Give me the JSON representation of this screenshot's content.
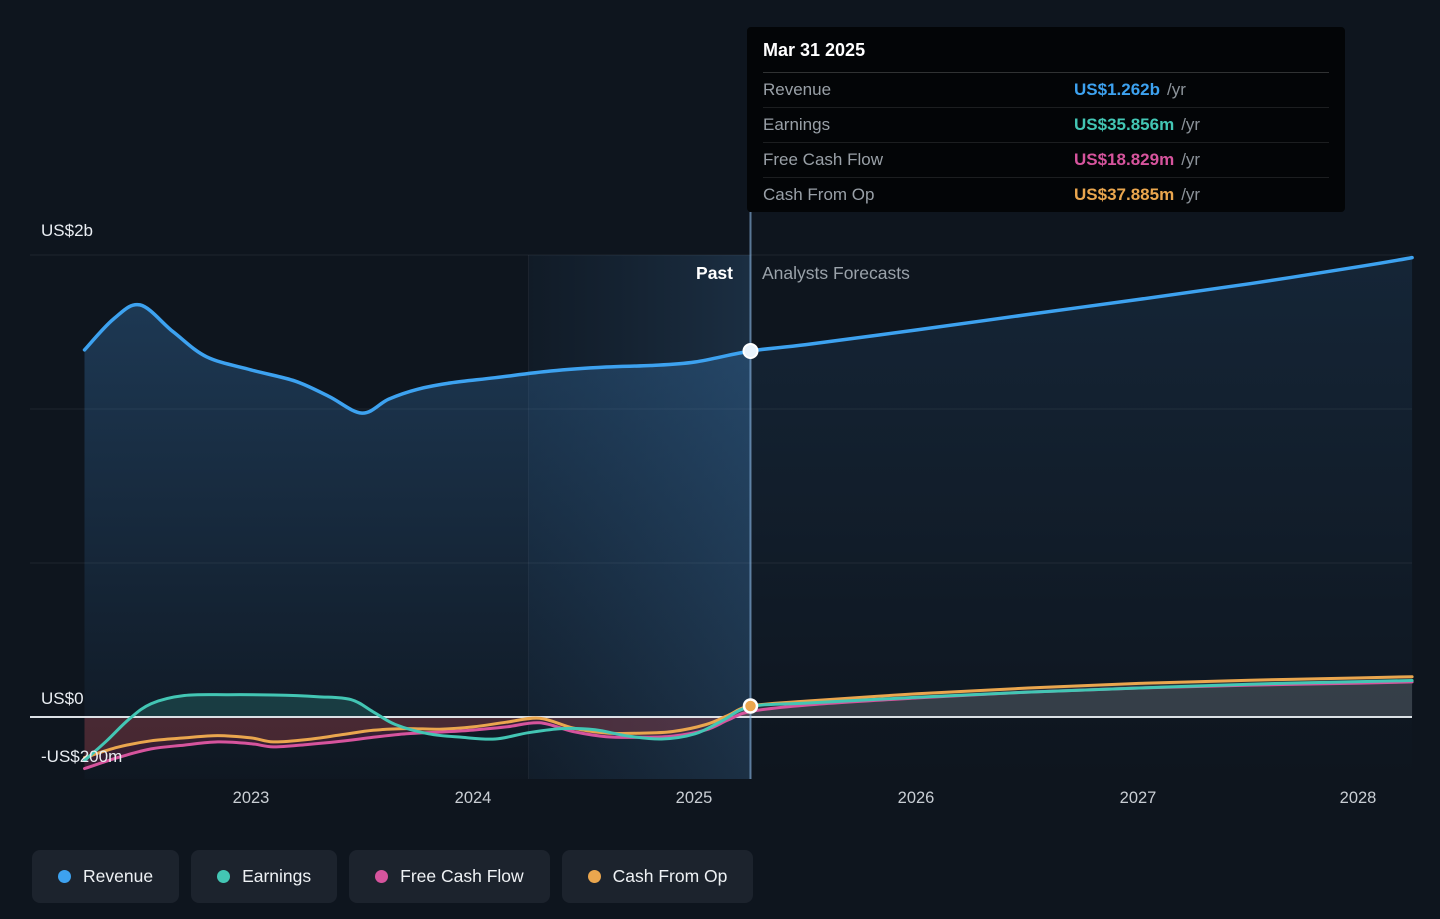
{
  "tooltip": {
    "title": "Mar 31 2025",
    "rows": [
      {
        "label": "Revenue",
        "value": "US$1.262b",
        "suffix": "/yr",
        "color": "#3da2f0"
      },
      {
        "label": "Earnings",
        "value": "US$35.856m",
        "suffix": "/yr",
        "color": "#43c6b4"
      },
      {
        "label": "Free Cash Flow",
        "value": "US$18.829m",
        "suffix": "/yr",
        "color": "#d6549d"
      },
      {
        "label": "Cash From Op",
        "value": "US$37.885m",
        "suffix": "/yr",
        "color": "#eaa64e"
      }
    ]
  },
  "annotations": {
    "past": "Past",
    "forecast": "Analysts Forecasts"
  },
  "axis": {
    "y_labels": [
      "US$2b",
      "US$0",
      "-US$200m"
    ]
  },
  "legend": [
    {
      "label": "Revenue",
      "color": "#3da2f0"
    },
    {
      "label": "Earnings",
      "color": "#43c6b4"
    },
    {
      "label": "Free Cash Flow",
      "color": "#d6549d"
    },
    {
      "label": "Cash From Op",
      "color": "#eaa64e"
    }
  ],
  "chart_data": {
    "type": "line",
    "unit": "US$m",
    "x_ticks": [
      "2023",
      "2024",
      "2025",
      "2026",
      "2027",
      "2028"
    ],
    "x_tick_years": [
      2023,
      2024,
      2025,
      2026,
      2027,
      2028
    ],
    "x_range": [
      2022.25,
      2028.23
    ],
    "divider_x": 2025.25,
    "divider_date": "Mar 31 2025",
    "y_axis": {
      "labels": [
        "US$2b",
        "US$0",
        "-US$200m"
      ],
      "values_m": [
        2000,
        0,
        -200
      ]
    },
    "legend_position": "bottom",
    "grid": true,
    "series": [
      {
        "name": "Revenue",
        "color": "#3da2f0",
        "past_until": 2025.25,
        "points": [
          [
            2022.25,
            1266
          ],
          [
            2022.38,
            1372
          ],
          [
            2022.5,
            1421
          ],
          [
            2022.65,
            1328
          ],
          [
            2022.8,
            1242
          ],
          [
            2023.0,
            1197
          ],
          [
            2023.2,
            1158
          ],
          [
            2023.35,
            1106
          ],
          [
            2023.5,
            1048
          ],
          [
            2023.62,
            1096
          ],
          [
            2023.75,
            1130
          ],
          [
            2023.9,
            1152
          ],
          [
            2024.1,
            1170
          ],
          [
            2024.35,
            1193
          ],
          [
            2024.6,
            1207
          ],
          [
            2024.8,
            1212
          ],
          [
            2025.0,
            1224
          ],
          [
            2025.25,
            1262
          ],
          [
            2025.5,
            1284
          ],
          [
            2026.0,
            1335
          ],
          [
            2026.5,
            1388
          ],
          [
            2027.0,
            1440
          ],
          [
            2027.5,
            1494
          ],
          [
            2028.0,
            1554
          ],
          [
            2028.23,
            1584
          ]
        ]
      },
      {
        "name": "Earnings",
        "color": "#43c6b4",
        "past_until": 2025.25,
        "points": [
          [
            2022.25,
            -150
          ],
          [
            2022.35,
            -82
          ],
          [
            2022.45,
            -8
          ],
          [
            2022.55,
            46
          ],
          [
            2022.7,
            74
          ],
          [
            2022.9,
            77
          ],
          [
            2023.1,
            76
          ],
          [
            2023.3,
            70
          ],
          [
            2023.45,
            60
          ],
          [
            2023.55,
            18
          ],
          [
            2023.65,
            -26
          ],
          [
            2023.8,
            -58
          ],
          [
            2023.95,
            -70
          ],
          [
            2024.1,
            -76
          ],
          [
            2024.25,
            -54
          ],
          [
            2024.4,
            -40
          ],
          [
            2024.55,
            -44
          ],
          [
            2024.7,
            -66
          ],
          [
            2024.85,
            -76
          ],
          [
            2025.0,
            -58
          ],
          [
            2025.12,
            -14
          ],
          [
            2025.25,
            35.856
          ],
          [
            2025.5,
            48
          ],
          [
            2026.0,
            68
          ],
          [
            2026.5,
            86
          ],
          [
            2027.0,
            100
          ],
          [
            2027.5,
            113
          ],
          [
            2028.0,
            122
          ],
          [
            2028.23,
            126
          ]
        ]
      },
      {
        "name": "Free Cash Flow",
        "color": "#d6549d",
        "past_until": 2025.25,
        "points": [
          [
            2022.25,
            -178
          ],
          [
            2022.4,
            -140
          ],
          [
            2022.55,
            -110
          ],
          [
            2022.7,
            -97
          ],
          [
            2022.85,
            -86
          ],
          [
            2023.0,
            -92
          ],
          [
            2023.1,
            -103
          ],
          [
            2023.25,
            -95
          ],
          [
            2023.4,
            -84
          ],
          [
            2023.55,
            -70
          ],
          [
            2023.7,
            -58
          ],
          [
            2023.85,
            -52
          ],
          [
            2024.0,
            -45
          ],
          [
            2024.15,
            -34
          ],
          [
            2024.3,
            -20
          ],
          [
            2024.45,
            -50
          ],
          [
            2024.6,
            -68
          ],
          [
            2024.75,
            -70
          ],
          [
            2024.9,
            -66
          ],
          [
            2025.05,
            -44
          ],
          [
            2025.15,
            -10
          ],
          [
            2025.25,
            18.829
          ],
          [
            2025.5,
            41
          ],
          [
            2026.0,
            66
          ],
          [
            2026.5,
            86
          ],
          [
            2027.0,
            100
          ],
          [
            2027.5,
            110
          ],
          [
            2028.0,
            117
          ],
          [
            2028.23,
            121
          ]
        ]
      },
      {
        "name": "Cash From Op",
        "color": "#eaa64e",
        "past_until": 2025.25,
        "points": [
          [
            2022.25,
            -140
          ],
          [
            2022.4,
            -104
          ],
          [
            2022.55,
            -82
          ],
          [
            2022.7,
            -72
          ],
          [
            2022.85,
            -64
          ],
          [
            2023.0,
            -72
          ],
          [
            2023.1,
            -86
          ],
          [
            2023.25,
            -78
          ],
          [
            2023.4,
            -62
          ],
          [
            2023.55,
            -46
          ],
          [
            2023.7,
            -40
          ],
          [
            2023.85,
            -42
          ],
          [
            2024.0,
            -34
          ],
          [
            2024.15,
            -18
          ],
          [
            2024.3,
            -4
          ],
          [
            2024.45,
            -38
          ],
          [
            2024.6,
            -55
          ],
          [
            2024.75,
            -56
          ],
          [
            2024.9,
            -50
          ],
          [
            2025.05,
            -26
          ],
          [
            2025.15,
            6
          ],
          [
            2025.25,
            37.885
          ],
          [
            2025.5,
            55
          ],
          [
            2026.0,
            80
          ],
          [
            2026.5,
            100
          ],
          [
            2027.0,
            116
          ],
          [
            2027.5,
            127
          ],
          [
            2028.0,
            135
          ],
          [
            2028.23,
            139
          ]
        ]
      }
    ]
  }
}
